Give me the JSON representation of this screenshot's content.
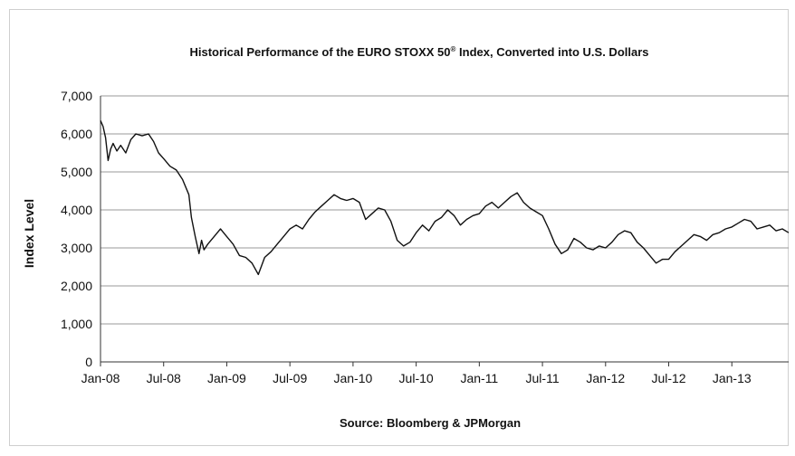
{
  "chart_data": {
    "type": "line",
    "title": "Historical Performance of the EURO STOXX 50",
    "title_superscript": "®",
    "title_suffix": " Index, Converted into U.S. Dollars",
    "ylabel": "Index Level",
    "source": "Source: Bloomberg & JPMorgan",
    "ylim": [
      0,
      7000
    ],
    "yticks": [
      0,
      1000,
      2000,
      3000,
      4000,
      5000,
      6000,
      7000
    ],
    "ytick_labels": [
      "0",
      "1,000",
      "2,000",
      "3,000",
      "4,000",
      "5,000",
      "6,000",
      "7,000"
    ],
    "x_range": [
      2008.0,
      2013.45
    ],
    "xticks": [
      2008.0,
      2008.5,
      2009.0,
      2009.5,
      2010.0,
      2010.5,
      2011.0,
      2011.5,
      2012.0,
      2012.5,
      2013.0
    ],
    "xtick_labels": [
      "Jan-08",
      "Jul-08",
      "Jan-09",
      "Jul-09",
      "Jan-10",
      "Jul-10",
      "Jan-11",
      "Jul-11",
      "Jan-12",
      "Jul-12",
      "Jan-13"
    ],
    "grid": "horizontal",
    "legend": "none",
    "line_color": "#111111",
    "series": [
      {
        "x": [
          2008.0,
          2008.02,
          2008.04,
          2008.06,
          2008.08,
          2008.1,
          2008.13,
          2008.16,
          2008.2,
          2008.24,
          2008.28,
          2008.33,
          2008.38,
          2008.42,
          2008.46,
          2008.5,
          2008.55,
          2008.6,
          2008.65,
          2008.7,
          2008.72,
          2008.75,
          2008.78,
          2008.8,
          2008.82,
          2008.85,
          2008.9,
          2008.95,
          2009.0,
          2009.05,
          2009.1,
          2009.15,
          2009.2,
          2009.25,
          2009.3,
          2009.35,
          2009.4,
          2009.45,
          2009.5,
          2009.55,
          2009.6,
          2009.65,
          2009.7,
          2009.75,
          2009.8,
          2009.85,
          2009.9,
          2009.95,
          2010.0,
          2010.05,
          2010.1,
          2010.15,
          2010.2,
          2010.25,
          2010.3,
          2010.35,
          2010.4,
          2010.45,
          2010.5,
          2010.55,
          2010.6,
          2010.65,
          2010.7,
          2010.75,
          2010.8,
          2010.85,
          2010.9,
          2010.95,
          2011.0,
          2011.05,
          2011.1,
          2011.15,
          2011.2,
          2011.25,
          2011.3,
          2011.35,
          2011.4,
          2011.45,
          2011.5,
          2011.55,
          2011.6,
          2011.65,
          2011.7,
          2011.75,
          2011.8,
          2011.85,
          2011.9,
          2011.95,
          2012.0,
          2012.05,
          2012.1,
          2012.15,
          2012.2,
          2012.25,
          2012.3,
          2012.35,
          2012.4,
          2012.45,
          2012.5,
          2012.55,
          2012.6,
          2012.65,
          2012.7,
          2012.75,
          2012.8,
          2012.85,
          2012.9,
          2012.95,
          2013.0,
          2013.05,
          2013.1,
          2013.15,
          2013.2,
          2013.25,
          2013.3,
          2013.35,
          2013.4,
          2013.45
        ],
        "values": [
          6350,
          6200,
          5900,
          5300,
          5600,
          5750,
          5550,
          5700,
          5500,
          5850,
          6000,
          5950,
          6000,
          5800,
          5500,
          5350,
          5150,
          5050,
          4800,
          4400,
          3800,
          3300,
          2850,
          3200,
          2950,
          3100,
          3300,
          3500,
          3300,
          3100,
          2800,
          2750,
          2600,
          2300,
          2750,
          2900,
          3100,
          3300,
          3500,
          3600,
          3500,
          3750,
          3950,
          4100,
          4250,
          4400,
          4300,
          4250,
          4300,
          4200,
          3750,
          3900,
          4050,
          4000,
          3700,
          3200,
          3050,
          3150,
          3400,
          3600,
          3450,
          3700,
          3800,
          4000,
          3850,
          3600,
          3750,
          3850,
          3900,
          4100,
          4200,
          4050,
          4200,
          4350,
          4450,
          4200,
          4050,
          3950,
          3850,
          3500,
          3100,
          2850,
          2950,
          3250,
          3150,
          3000,
          2950,
          3050,
          3000,
          3150,
          3350,
          3450,
          3400,
          3150,
          3000,
          2800,
          2600,
          2700,
          2700,
          2900,
          3050,
          3200,
          3350,
          3300,
          3200,
          3350,
          3400,
          3500,
          3550,
          3650,
          3750,
          3700,
          3500,
          3550,
          3600,
          3450,
          3500,
          3400
        ]
      }
    ]
  }
}
